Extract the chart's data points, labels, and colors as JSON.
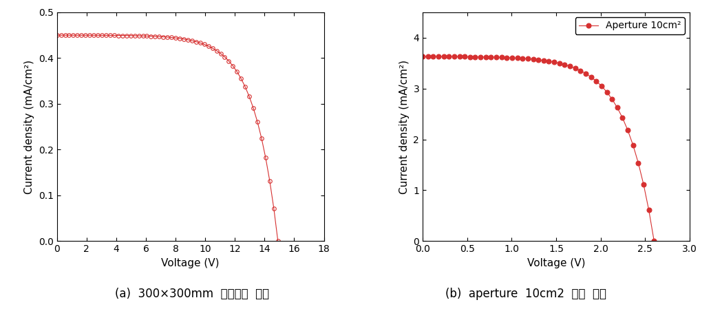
{
  "chart_a": {
    "xlabel": "Voltage (V)",
    "ylabel": "Current density (mA/cm²)",
    "xlim": [
      0,
      18
    ],
    "ylim": [
      0,
      0.5
    ],
    "xticks": [
      0,
      2,
      4,
      6,
      8,
      10,
      12,
      14,
      16,
      18
    ],
    "yticks": [
      0.0,
      0.1,
      0.2,
      0.3,
      0.4,
      0.5
    ],
    "color": "#d63030",
    "marker": "o",
    "markersize": 4,
    "fillstyle": "none",
    "Jsc": 0.45,
    "Voc": 14.9,
    "FF": 0.68,
    "n_points": 55
  },
  "chart_b": {
    "xlabel": "Voltage (V)",
    "ylabel": "Current density (mA/cm²)",
    "xlim": [
      0,
      3.0
    ],
    "ylim": [
      0,
      4.5
    ],
    "xticks": [
      0.0,
      0.5,
      1.0,
      1.5,
      2.0,
      2.5,
      3.0
    ],
    "yticks": [
      0,
      1,
      2,
      3,
      4
    ],
    "color": "#d63030",
    "marker": "o",
    "markersize": 5,
    "fillstyle": "full",
    "legend_label": "Aperture 10cm²",
    "Jsc": 3.63,
    "Voc": 2.6,
    "FF": 0.65,
    "n_points": 45
  },
  "background_color": "#ffffff"
}
